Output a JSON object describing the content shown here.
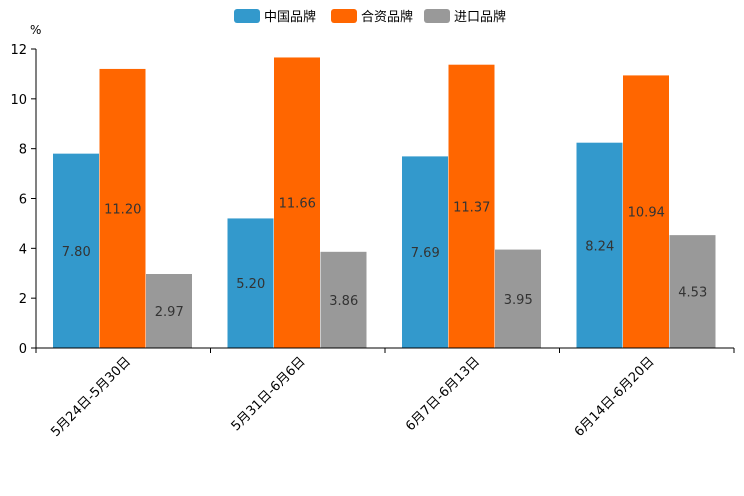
{
  "chart_data": {
    "type": "bar",
    "title": "",
    "xlabel": "",
    "ylabel": "%",
    "ylim": [
      0,
      12
    ],
    "yticks": [
      0,
      2,
      4,
      6,
      8,
      10,
      12
    ],
    "grid": false,
    "legend_position": "top-center",
    "categories": [
      "5月24日-5月30日",
      "5月31日-6月6日",
      "6月7日-6月13日",
      "6月14日-6月20日"
    ],
    "series": [
      {
        "name": "中国品牌",
        "color": "#3399cc",
        "values": [
          7.8,
          5.2,
          7.69,
          8.24
        ],
        "labels": [
          "7.80",
          "5.20",
          "7.69",
          "8.24"
        ]
      },
      {
        "name": "合资品牌",
        "color": "#ff6600",
        "values": [
          11.2,
          11.66,
          11.37,
          10.94
        ],
        "labels": [
          "11.20",
          "11.66",
          "11.37",
          "10.94"
        ]
      },
      {
        "name": "进口品牌",
        "color": "#999999",
        "values": [
          2.97,
          3.86,
          3.95,
          4.53
        ],
        "labels": [
          "2.97",
          "3.86",
          "3.95",
          "4.53"
        ]
      }
    ]
  }
}
